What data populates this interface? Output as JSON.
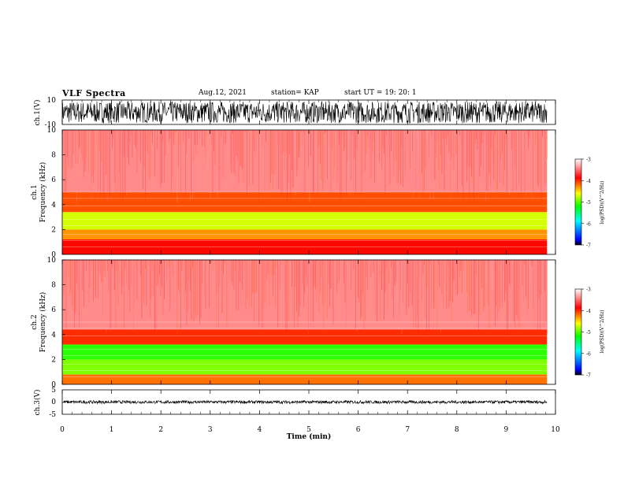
{
  "header": {
    "title": "VLF Spectra",
    "date": "Aug.12, 2021",
    "station": "station= KAP",
    "start": "start  UT =   19: 20: 1"
  },
  "chart_data": [
    {
      "type": "line",
      "panel": "ch1-waveform",
      "ylabel": "ch.1(V)",
      "ylim": [
        -10,
        10
      ],
      "y_ticks": [
        "10",
        "-10"
      ],
      "xlim": [
        0,
        9.83
      ],
      "description_values": {
        "signal_range": [
          -9,
          9
        ]
      }
    },
    {
      "type": "heatmap",
      "panel": "ch1-spectrogram",
      "ylabel": "ch.1\nFrequency (kHz)",
      "ylim": [
        0,
        10
      ],
      "y_ticks": [
        "0",
        "2",
        "4",
        "6",
        "8",
        "10"
      ],
      "xlim": [
        0,
        9.83
      ],
      "bands": [
        {
          "f0": 0,
          "f1": 1.2,
          "level": -3.9
        },
        {
          "f0": 1.2,
          "f1": 2.0,
          "level": -4.3
        },
        {
          "f0": 2.0,
          "f1": 3.4,
          "level": -4.7
        },
        {
          "f0": 3.4,
          "f1": 5.0,
          "level": -4.1
        },
        {
          "f0": 5.0,
          "f1": 10.0,
          "level": -3.4
        }
      ],
      "colorbar": {
        "label": "log(PSD)(V^2/Hz)",
        "range": [
          -7,
          -3
        ],
        "ticks": [
          "-3",
          "-4",
          "-5",
          "-6",
          "-7"
        ]
      }
    },
    {
      "type": "heatmap",
      "panel": "ch2-spectrogram",
      "ylabel": "ch.2\nFrequency (kHz)",
      "ylim": [
        0,
        10
      ],
      "y_ticks": [
        "0",
        "2",
        "4",
        "6",
        "8",
        "10"
      ],
      "xlim": [
        0,
        9.83
      ],
      "bands": [
        {
          "f0": 0,
          "f1": 0.8,
          "level": -4.2
        },
        {
          "f0": 0.8,
          "f1": 2.0,
          "level": -4.9
        },
        {
          "f0": 2.0,
          "f1": 3.2,
          "level": -5.1
        },
        {
          "f0": 3.2,
          "f1": 4.4,
          "level": -4.0
        },
        {
          "f0": 4.4,
          "f1": 10.0,
          "level": -3.4
        }
      ],
      "colorbar": {
        "label": "log(PSD)(V^2/Hz)",
        "range": [
          -7,
          -3
        ],
        "ticks": [
          "-3",
          "-4",
          "-5",
          "-6",
          "-7"
        ]
      }
    },
    {
      "type": "line",
      "panel": "ch3-waveform",
      "ylabel": "ch.3(V)",
      "ylim": [
        -5,
        5
      ],
      "y_ticks": [
        "5",
        "0",
        "-5"
      ],
      "xlim": [
        0,
        9.83
      ],
      "description_values": {
        "signal_range": [
          -0.6,
          0.6
        ]
      }
    }
  ],
  "xaxis": {
    "label": "Time (min)",
    "ticks": [
      "0",
      "1",
      "2",
      "3",
      "4",
      "5",
      "6",
      "7",
      "8",
      "9",
      "10"
    ],
    "range": [
      0,
      10
    ]
  },
  "colors": {
    "waveform": "#000000",
    "spectrogram_low": "#ffffff",
    "spectrogram_high": "#ff0000"
  }
}
